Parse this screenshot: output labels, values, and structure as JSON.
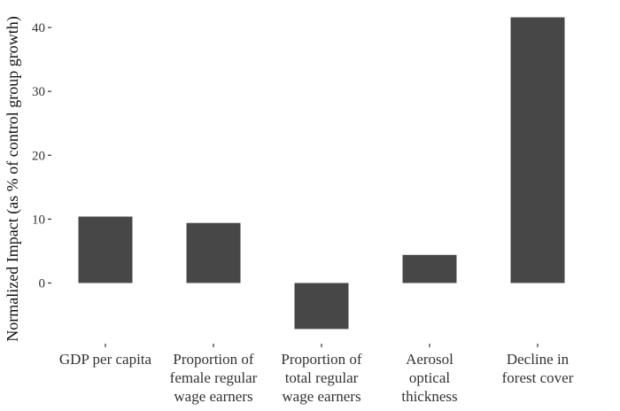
{
  "chart_data": {
    "type": "bar",
    "title": "",
    "xlabel": "",
    "ylabel": "Normalized Impact (as % of control group growth)",
    "categories": [
      [
        "GDP per capita"
      ],
      [
        "Proportion of",
        "female regular",
        "wage earners"
      ],
      [
        "Proportion of",
        "total regular",
        "wage earners"
      ],
      [
        "Aerosol",
        "optical",
        "thickness"
      ],
      [
        "Decline in",
        "forest cover"
      ]
    ],
    "values": [
      10.4,
      9.4,
      -7.2,
      4.4,
      41.6
    ],
    "ylim": [
      -9.5,
      43.2
    ],
    "yticks": [
      0,
      10,
      20,
      30,
      40
    ],
    "grid": false,
    "legend": "none",
    "colors": {
      "bar": "#474747",
      "tick": "#333333",
      "text": "#333333"
    }
  }
}
